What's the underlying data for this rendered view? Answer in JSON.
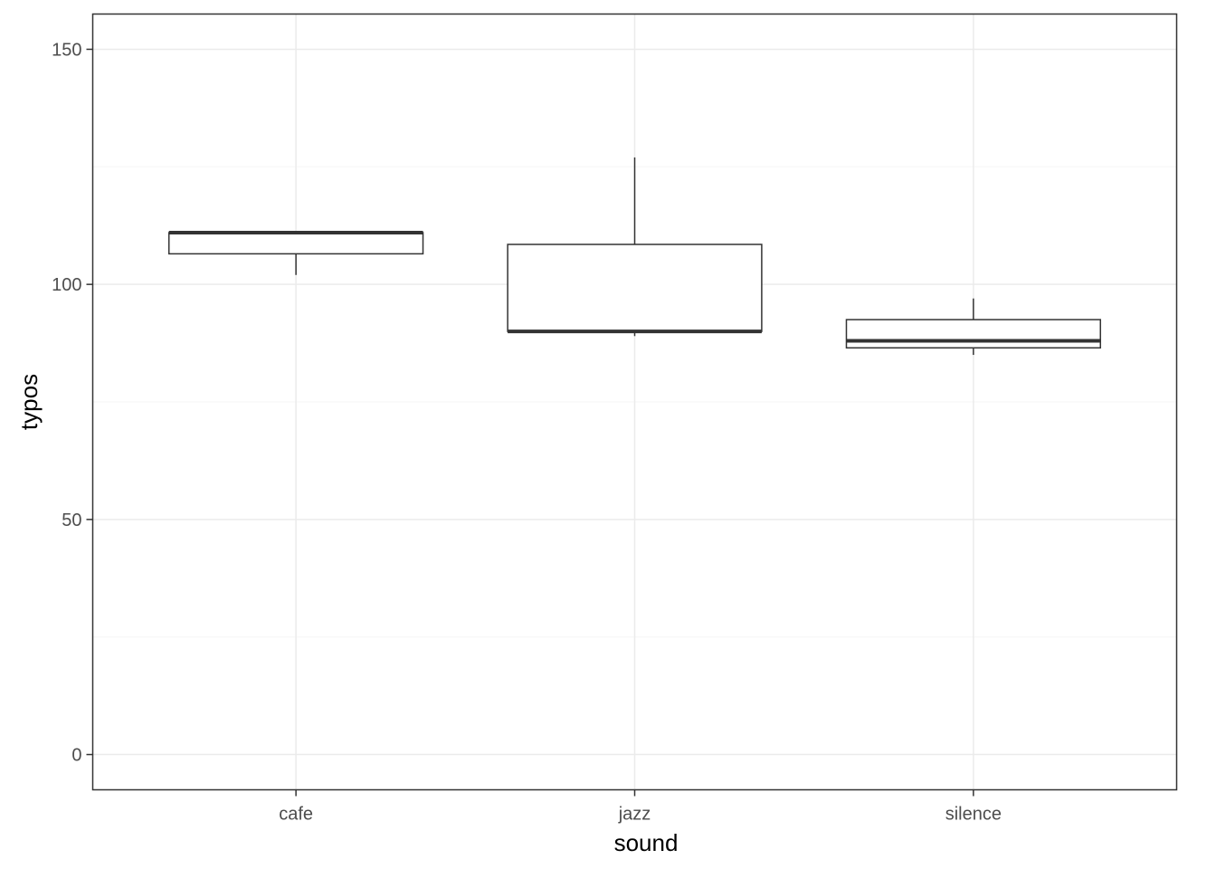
{
  "chart_data": {
    "type": "boxplot",
    "xlabel": "sound",
    "ylabel": "typos",
    "categories": [
      "cafe",
      "jazz",
      "silence"
    ],
    "ylim": [
      -7.5,
      157.5
    ],
    "yticks": [
      0,
      50,
      100,
      150
    ],
    "ytick_labels": [
      "0",
      "50",
      "100",
      "150"
    ],
    "boxes": [
      {
        "category": "cafe",
        "min": 102,
        "q1": 106.5,
        "median": 111,
        "q3": 111,
        "max": 111
      },
      {
        "category": "jazz",
        "min": 89,
        "q1": 90,
        "median": 90,
        "q3": 108.5,
        "max": 127
      },
      {
        "category": "silence",
        "min": 85,
        "q1": 86.5,
        "median": 88,
        "q3": 92.5,
        "max": 97
      }
    ],
    "grid": true,
    "colors": {
      "box_outline": "#333333",
      "grid_major": "#ebebeb",
      "grid_minor": "#f5f5f5",
      "panel_border": "#333333",
      "tick_text": "#4d4d4d"
    }
  }
}
